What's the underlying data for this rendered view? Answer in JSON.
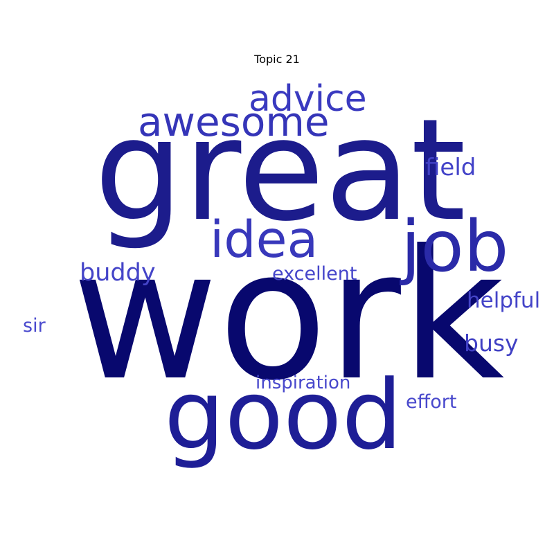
{
  "title": "Topic 21",
  "words": [
    {
      "id": "work",
      "text": "work",
      "color": "#08086e"
    },
    {
      "id": "great",
      "text": "great",
      "color": "#1c1c8c"
    },
    {
      "id": "good",
      "text": "good",
      "color": "#1e1e96"
    },
    {
      "id": "job",
      "text": "job",
      "color": "#2a2aa8"
    },
    {
      "id": "idea",
      "text": "idea",
      "color": "#3838bb"
    },
    {
      "id": "awesome",
      "text": "awesome",
      "color": "#3535b8"
    },
    {
      "id": "advice",
      "text": "advice",
      "color": "#3a3ac0"
    },
    {
      "id": "field",
      "text": "field",
      "color": "#4242c8"
    },
    {
      "id": "buddy",
      "text": "buddy",
      "color": "#4444c8"
    },
    {
      "id": "helpful",
      "text": "helpful",
      "color": "#4444c8"
    },
    {
      "id": "busy",
      "text": "busy",
      "color": "#4040c4"
    },
    {
      "id": "excellent",
      "text": "excellent",
      "color": "#4545ca"
    },
    {
      "id": "inspiration",
      "text": "inspiration",
      "color": "#4848cc"
    },
    {
      "id": "effort",
      "text": "effort",
      "color": "#4848cc"
    },
    {
      "id": "sir",
      "text": "sir",
      "color": "#4a4ace"
    }
  ]
}
